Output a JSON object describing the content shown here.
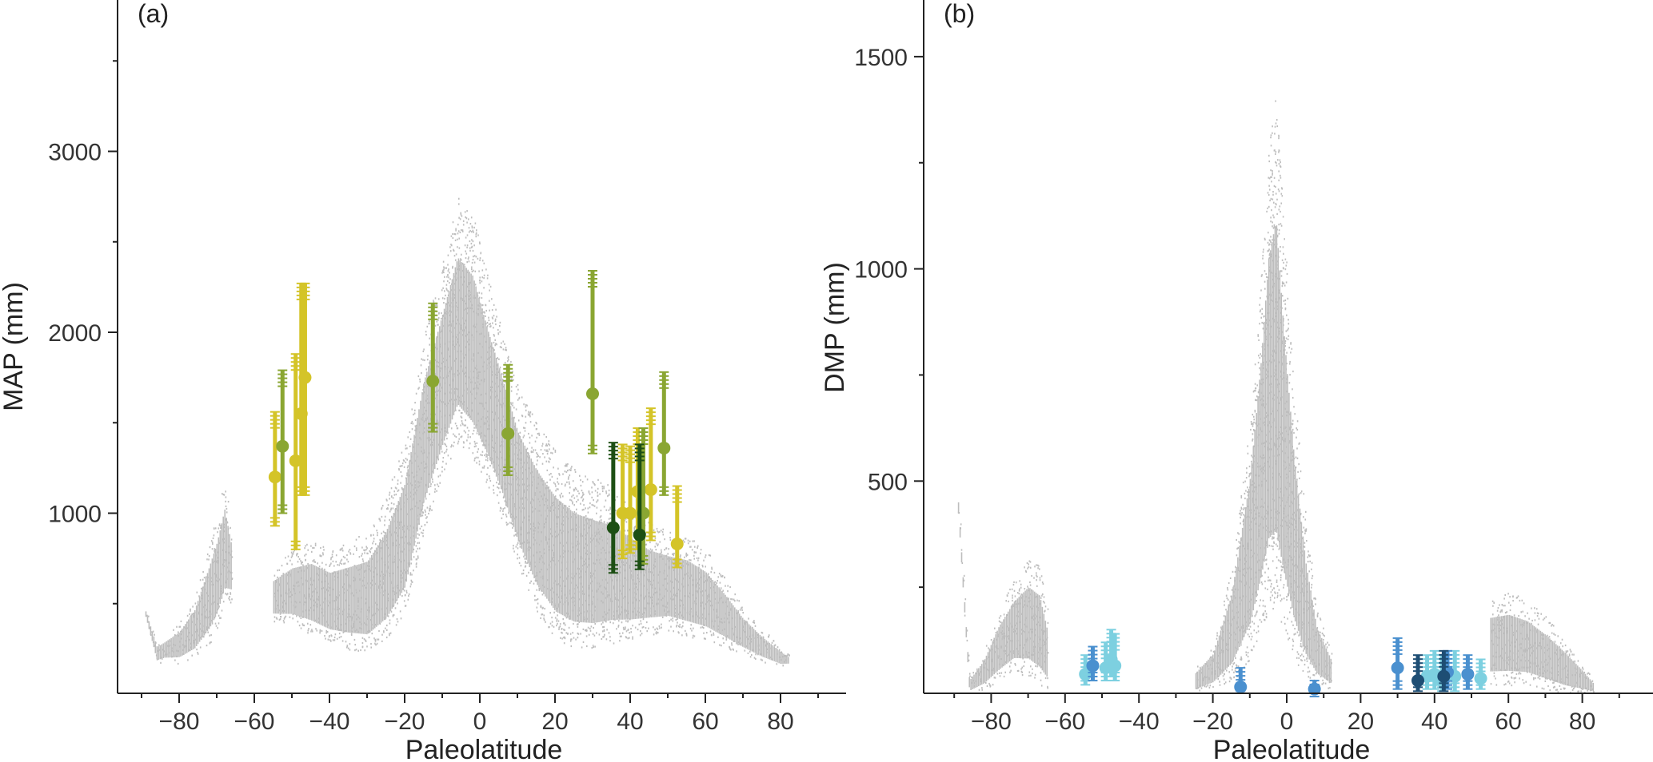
{
  "chart_data": [
    {
      "panel": "(a)",
      "type": "scatter",
      "xlabel": "Paleolatitude",
      "ylabel": "MAP (mm)",
      "xlim": [
        -95,
        97
      ],
      "ylim": [
        0,
        3800
      ],
      "xticks": [
        "−80",
        "−60",
        "−40",
        "−20",
        "0",
        "20",
        "40",
        "60",
        "80"
      ],
      "xtick_values": [
        -80,
        -60,
        -40,
        -20,
        0,
        20,
        40,
        60,
        80
      ],
      "yticks": [
        "1000",
        "2000",
        "3000"
      ],
      "ytick_values": [
        1000,
        2000,
        3000
      ],
      "ytick_minor": [
        500,
        1500,
        2500,
        3500
      ],
      "cloud_color": "#bdbdbd",
      "cloud_profile": [
        [
          -89,
          420,
          470
        ],
        [
          -86,
          170,
          290
        ],
        [
          -84,
          180,
          320
        ],
        [
          -80,
          170,
          400
        ],
        [
          -76,
          200,
          550
        ],
        [
          -72,
          280,
          850
        ],
        [
          -70,
          350,
          1000
        ],
        [
          -68,
          480,
          1200
        ],
        [
          -66,
          520,
          900
        ],
        [
          -55,
          400,
          700
        ],
        [
          -50,
          380,
          800
        ],
        [
          -45,
          330,
          850
        ],
        [
          -40,
          280,
          800
        ],
        [
          -35,
          250,
          850
        ],
        [
          -30,
          230,
          900
        ],
        [
          -25,
          300,
          1100
        ],
        [
          -20,
          450,
          1400
        ],
        [
          -15,
          900,
          2000
        ],
        [
          -10,
          1200,
          2400
        ],
        [
          -6,
          1400,
          2750
        ],
        [
          -2,
          1300,
          2650
        ],
        [
          2,
          1150,
          2300
        ],
        [
          6,
          950,
          2000
        ],
        [
          10,
          700,
          1700
        ],
        [
          15,
          450,
          1500
        ],
        [
          20,
          300,
          1350
        ],
        [
          25,
          250,
          1250
        ],
        [
          30,
          250,
          1200
        ],
        [
          35,
          280,
          1150
        ],
        [
          40,
          300,
          1050
        ],
        [
          45,
          330,
          950
        ],
        [
          50,
          350,
          900
        ],
        [
          55,
          320,
          880
        ],
        [
          60,
          300,
          800
        ],
        [
          65,
          260,
          650
        ],
        [
          70,
          220,
          480
        ],
        [
          75,
          180,
          360
        ],
        [
          80,
          150,
          260
        ],
        [
          82,
          160,
          220
        ]
      ],
      "series": [
        {
          "color": "#d4c428",
          "points": [
            {
              "x": -54.5,
              "y": 1200,
              "lo": 930,
              "hi": 1560
            },
            {
              "x": -49,
              "y": 1290,
              "lo": 800,
              "hi": 1880
            },
            {
              "x": -47.5,
              "y": 1550,
              "lo": 1100,
              "hi": 2270
            },
            {
              "x": -46.5,
              "y": 1750,
              "lo": 1100,
              "hi": 2270
            },
            {
              "x": 38,
              "y": 1000,
              "lo": 750,
              "hi": 1380
            },
            {
              "x": 40,
              "y": 1000,
              "lo": 780,
              "hi": 1370
            },
            {
              "x": 42,
              "y": 1120,
              "lo": 800,
              "hi": 1470
            },
            {
              "x": 45.5,
              "y": 1130,
              "lo": 850,
              "hi": 1580
            },
            {
              "x": 52.5,
              "y": 830,
              "lo": 700,
              "hi": 1150
            }
          ]
        },
        {
          "color": "#8aa632",
          "points": [
            {
              "x": -52.5,
              "y": 1370,
              "lo": 1000,
              "hi": 1790
            },
            {
              "x": -12.5,
              "y": 1730,
              "lo": 1450,
              "hi": 2160
            },
            {
              "x": 7.5,
              "y": 1440,
              "lo": 1210,
              "hi": 1820
            },
            {
              "x": 30,
              "y": 1660,
              "lo": 1330,
              "hi": 2340
            },
            {
              "x": 43.5,
              "y": 1000,
              "lo": 720,
              "hi": 1470
            },
            {
              "x": 49,
              "y": 1360,
              "lo": 1100,
              "hi": 1780
            }
          ]
        },
        {
          "color": "#1d4f14",
          "points": [
            {
              "x": 35.5,
              "y": 920,
              "lo": 670,
              "hi": 1390
            },
            {
              "x": 42.5,
              "y": 880,
              "lo": 690,
              "hi": 1380
            }
          ]
        }
      ]
    },
    {
      "panel": "(b)",
      "type": "scatter",
      "xlabel": "Paleolatitude",
      "ylabel": "DMP (mm)",
      "xlim": [
        -97,
        97
      ],
      "ylim": [
        0,
        1620
      ],
      "xticks": [
        "−80",
        "−60",
        "−40",
        "−20",
        "0",
        "20",
        "40",
        "60",
        "80"
      ],
      "xtick_values": [
        -80,
        -60,
        -40,
        -20,
        0,
        20,
        40,
        60,
        80
      ],
      "yticks": [
        "500",
        "1000",
        "1500"
      ],
      "ytick_values": [
        500,
        1000,
        1500
      ],
      "ytick_minor": [
        250,
        750,
        1250
      ],
      "cloud_color": "#bdbdbd",
      "cloud_profile": [
        [
          -89,
          420,
          460
        ],
        [
          -86,
          0,
          40
        ],
        [
          -82,
          10,
          100
        ],
        [
          -78,
          30,
          200
        ],
        [
          -74,
          50,
          270
        ],
        [
          -70,
          40,
          320
        ],
        [
          -67,
          20,
          300
        ],
        [
          -65,
          10,
          200
        ],
        [
          -55,
          0,
          60
        ],
        [
          -45,
          0,
          80
        ],
        [
          -35,
          0,
          60
        ],
        [
          -25,
          0,
          60
        ],
        [
          -20,
          10,
          120
        ],
        [
          -15,
          30,
          300
        ],
        [
          -10,
          80,
          650
        ],
        [
          -7,
          150,
          1000
        ],
        [
          -5,
          200,
          1300
        ],
        [
          -3,
          200,
          1420
        ],
        [
          -1,
          150,
          1100
        ],
        [
          2,
          80,
          700
        ],
        [
          5,
          40,
          400
        ],
        [
          8,
          20,
          200
        ],
        [
          12,
          10,
          100
        ],
        [
          20,
          0,
          70
        ],
        [
          30,
          0,
          110
        ],
        [
          40,
          0,
          140
        ],
        [
          48,
          10,
          200
        ],
        [
          55,
          20,
          230
        ],
        [
          60,
          20,
          240
        ],
        [
          65,
          20,
          220
        ],
        [
          70,
          10,
          180
        ],
        [
          75,
          0,
          130
        ],
        [
          80,
          0,
          70
        ],
        [
          83,
          0,
          30
        ]
      ],
      "series": [
        {
          "color": "#7dd0e0",
          "points": [
            {
              "x": -54.5,
              "y": 45,
              "lo": 20,
              "hi": 90
            },
            {
              "x": -49,
              "y": 60,
              "lo": 30,
              "hi": 120
            },
            {
              "x": -47.5,
              "y": 80,
              "lo": 40,
              "hi": 150
            },
            {
              "x": -46.5,
              "y": 65,
              "lo": 30,
              "hi": 140
            },
            {
              "x": 38,
              "y": 40,
              "lo": 10,
              "hi": 90
            },
            {
              "x": 40,
              "y": 45,
              "lo": 10,
              "hi": 100
            },
            {
              "x": 42,
              "y": 30,
              "lo": 5,
              "hi": 90
            },
            {
              "x": 45.5,
              "y": 40,
              "lo": 5,
              "hi": 100
            },
            {
              "x": 52.5,
              "y": 35,
              "lo": 10,
              "hi": 80
            }
          ]
        },
        {
          "color": "#4a90cf",
          "points": [
            {
              "x": -52.5,
              "y": 65,
              "lo": 30,
              "hi": 110
            },
            {
              "x": -12.5,
              "y": 15,
              "lo": 5,
              "hi": 60
            },
            {
              "x": 7.5,
              "y": 10,
              "lo": 2,
              "hi": 30
            },
            {
              "x": 30,
              "y": 60,
              "lo": 10,
              "hi": 130
            },
            {
              "x": 43.5,
              "y": 50,
              "lo": 10,
              "hi": 100
            },
            {
              "x": 49,
              "y": 45,
              "lo": 10,
              "hi": 90
            }
          ]
        },
        {
          "color": "#1e4e74",
          "points": [
            {
              "x": 35.5,
              "y": 30,
              "lo": 5,
              "hi": 90
            },
            {
              "x": 42.5,
              "y": 40,
              "lo": 5,
              "hi": 100
            }
          ]
        }
      ]
    }
  ]
}
